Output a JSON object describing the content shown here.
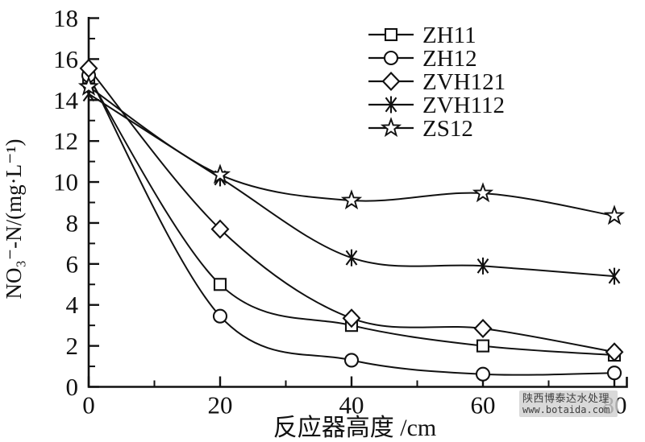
{
  "chart_data": {
    "type": "line",
    "title": "",
    "xlabel": "反应器高度 /cm",
    "ylabel": "NO₃⁻-N/(mg·L⁻¹)",
    "xlim": [
      0,
      80
    ],
    "ylim": [
      0,
      18
    ],
    "x_major_ticks": [
      0,
      20,
      40,
      60,
      80
    ],
    "x_minor_ticks": [
      10,
      30,
      50,
      70
    ],
    "y_major_ticks": [
      0,
      2,
      4,
      6,
      8,
      10,
      12,
      14,
      16,
      18
    ],
    "y_minor_ticks": [
      1,
      3,
      5,
      7,
      9,
      11,
      13,
      15,
      17
    ],
    "x": [
      0,
      20,
      40,
      60,
      80
    ],
    "series": [
      {
        "name": "ZH11",
        "marker": "square",
        "values": [
          15.1,
          5.0,
          3.0,
          2.0,
          1.55
        ]
      },
      {
        "name": "ZH12",
        "marker": "circle",
        "values": [
          15.2,
          3.45,
          1.3,
          0.62,
          0.68
        ]
      },
      {
        "name": "ZVH121",
        "marker": "diamond",
        "values": [
          15.55,
          7.7,
          3.35,
          2.85,
          1.7
        ]
      },
      {
        "name": "ZVH112",
        "marker": "asterisk",
        "values": [
          14.3,
          10.2,
          6.3,
          5.9,
          5.4
        ]
      },
      {
        "name": "ZS12",
        "marker": "star",
        "values": [
          14.65,
          10.35,
          9.1,
          9.45,
          8.35
        ]
      }
    ],
    "legend_position": "top-right-inside",
    "grid": false,
    "line_color": "#111111",
    "axis_color": "#111111"
  },
  "watermark": {
    "line1": "陕西博泰达水处理",
    "line2": "www.botaida.com"
  }
}
